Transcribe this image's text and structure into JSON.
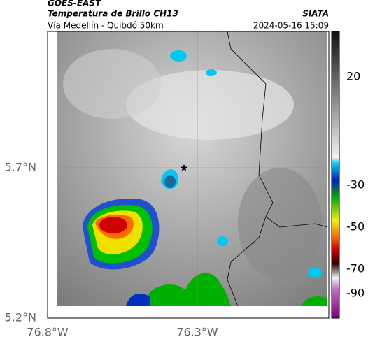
{
  "header": {
    "title": "GOES-EAST",
    "subtitle": "Temperatura de Brillo CH13",
    "source": "SIATA",
    "route": "Vía Medellín - Quibdó 50km",
    "datetime": "2024-05-16 15:09"
  },
  "map": {
    "lat_labels": [
      "5.7°N",
      "5.2°N"
    ],
    "lon_labels": [
      "76.8°W",
      "76.3°W"
    ]
  },
  "colorbar": {
    "tick_labels": [
      "20",
      "-30",
      "-50",
      "-70",
      "-90"
    ]
  }
}
